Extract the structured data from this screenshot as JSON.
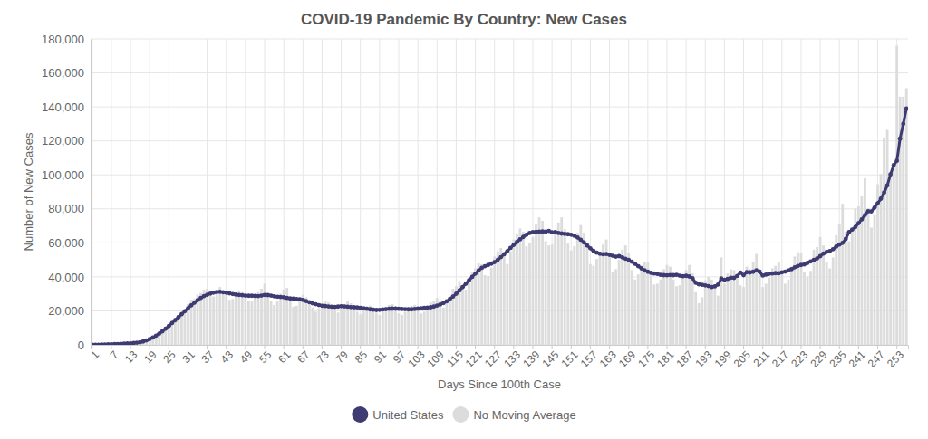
{
  "chart_data": {
    "type": "line",
    "title": "COVID-19 Pandemic By Country: New Cases",
    "x_label": "Days Since 100th Case",
    "y_label": "Number of New Cases",
    "categories": [
      "1",
      null,
      null,
      null,
      null,
      null,
      "7",
      null,
      null,
      null,
      null,
      null,
      "13",
      null,
      null,
      null,
      null,
      null,
      "19",
      null,
      null,
      null,
      null,
      null,
      "25",
      null,
      null,
      null,
      null,
      null,
      "31",
      null,
      null,
      null,
      null,
      null,
      "37",
      null,
      null,
      null,
      null,
      null,
      "43",
      null,
      null,
      null,
      null,
      null,
      "49",
      null,
      null,
      null,
      null,
      null,
      "55",
      null,
      null,
      null,
      null,
      null,
      "61",
      null,
      null,
      null,
      null,
      null,
      "67",
      null,
      null,
      null,
      null,
      null,
      "73",
      null,
      null,
      null,
      null,
      null,
      "79",
      null,
      null,
      null,
      null,
      null,
      "85",
      null,
      null,
      null,
      null,
      null,
      "91",
      null,
      null,
      null,
      null,
      null,
      "97",
      null,
      null,
      null,
      null,
      null,
      "103",
      null,
      null,
      null,
      null,
      null,
      "109",
      null,
      null,
      null,
      null,
      null,
      "115",
      null,
      null,
      null,
      null,
      null,
      "121",
      null,
      null,
      null,
      null,
      null,
      "127",
      null,
      null,
      null,
      null,
      null,
      "133",
      null,
      null,
      null,
      null,
      null,
      "139",
      null,
      null,
      null,
      null,
      null,
      "145",
      null,
      null,
      null,
      null,
      null,
      "151",
      null,
      null,
      null,
      null,
      null,
      "157",
      null,
      null,
      null,
      null,
      null,
      "163",
      null,
      null,
      null,
      null,
      null,
      "169",
      null,
      null,
      null,
      null,
      null,
      "175",
      null,
      null,
      null,
      null,
      null,
      "181",
      null,
      null,
      null,
      null,
      null,
      "187",
      null,
      null,
      null,
      null,
      null,
      "193",
      null,
      null,
      null,
      null,
      null,
      "199",
      null,
      null,
      null,
      null,
      null,
      "205",
      null,
      null,
      null,
      null,
      null,
      "211",
      null,
      null,
      null,
      null,
      null,
      "217",
      null,
      null,
      null,
      null,
      null,
      "223",
      null,
      null,
      null,
      null,
      null,
      "229",
      null,
      null,
      null,
      null,
      null,
      "235",
      null,
      null,
      null,
      null,
      null,
      "241",
      null,
      null,
      null,
      null,
      null,
      "247",
      null,
      null,
      null,
      null,
      null,
      "253",
      null,
      null,
      null
    ],
    "series": [
      {
        "name": "United States",
        "type": "line",
        "color": "#3d3b72",
        "marker": "circle",
        "line_style": "solid",
        "values": [
          0,
          100,
          100,
          200,
          200,
          300,
          300,
          400,
          500,
          600,
          700,
          800,
          900,
          1100,
          1300,
          1500,
          2000,
          2600,
          3400,
          4300,
          5400,
          6600,
          8000,
          9500,
          11100,
          12800,
          14500,
          16300,
          18000,
          19800,
          21500,
          23200,
          24800,
          26300,
          27600,
          28700,
          29500,
          30200,
          30700,
          31100,
          31200,
          31000,
          30700,
          30300,
          29900,
          29600,
          29400,
          29200,
          29000,
          28900,
          28900,
          28800,
          28700,
          29000,
          29400,
          29300,
          29000,
          28600,
          28300,
          28200,
          28000,
          27600,
          27300,
          27200,
          27000,
          26800,
          26400,
          25800,
          25100,
          24500,
          23900,
          23400,
          23000,
          22800,
          22600,
          22400,
          22300,
          22500,
          22700,
          22600,
          22400,
          22200,
          22100,
          22000,
          21800,
          21500,
          21200,
          20900,
          20700,
          20500,
          20600,
          20800,
          21000,
          21200,
          21300,
          21300,
          21200,
          21100,
          21000,
          20900,
          20900,
          21100,
          21300,
          21500,
          21800,
          21900,
          22100,
          22500,
          23100,
          23800,
          24600,
          25600,
          26900,
          28400,
          30100,
          32000,
          34000,
          36000,
          38000,
          40000,
          41900,
          43700,
          45300,
          46300,
          47000,
          47800,
          48700,
          50000,
          51600,
          53300,
          55100,
          57000,
          58800,
          60500,
          62100,
          63500,
          64800,
          65800,
          66300,
          66500,
          66600,
          66700,
          66600,
          67000,
          66200,
          66400,
          65800,
          65500,
          65300,
          65100,
          64800,
          64200,
          63200,
          61800,
          60200,
          58500,
          56800,
          55300,
          54200,
          53600,
          53300,
          53500,
          53000,
          52400,
          51900,
          52200,
          51500,
          50700,
          50000,
          48900,
          47700,
          46300,
          45000,
          43800,
          43000,
          42400,
          42000,
          41700,
          41200,
          41000,
          40900,
          41100,
          41000,
          41200,
          40700,
          40400,
          40600,
          40200,
          39200,
          36500,
          35600,
          35300,
          35000,
          34600,
          34000,
          34400,
          35500,
          39000,
          38300,
          38800,
          39500,
          39400,
          40500,
          42500,
          41000,
          42800,
          42600,
          43000,
          43800,
          43000,
          40800,
          41300,
          41800,
          42000,
          42200,
          42100,
          42700,
          43100,
          43900,
          44500,
          45600,
          46400,
          47000,
          47300,
          48200,
          49100,
          50000,
          50800,
          52200,
          53700,
          54700,
          55200,
          56300,
          57800,
          59000,
          60000,
          62300,
          66300,
          67800,
          69300,
          71600,
          73800,
          76400,
          78600,
          78500,
          80800,
          83300,
          86000,
          89600,
          93800,
          100300,
          105700,
          108300,
          121300,
          130000,
          139100
        ]
      },
      {
        "name": "No Moving Average",
        "type": "bar",
        "color": "#dcdcdc",
        "values": [
          100,
          120,
          130,
          210,
          230,
          330,
          280,
          420,
          540,
          650,
          700,
          850,
          1000,
          1150,
          1350,
          1600,
          2200,
          2800,
          3700,
          4700,
          6000,
          7300,
          9000,
          10500,
          12000,
          14200,
          16000,
          17500,
          19500,
          21000,
          24000,
          26500,
          27000,
          29500,
          30500,
          32500,
          33000,
          29000,
          28500,
          32000,
          34000,
          31500,
          30000,
          26500,
          27000,
          30500,
          32000,
          31000,
          29500,
          26000,
          25500,
          28500,
          31000,
          33000,
          36000,
          29500,
          26000,
          23500,
          25500,
          30000,
          32500,
          33500,
          27000,
          22500,
          23000,
          28000,
          29500,
          28000,
          26000,
          22000,
          19500,
          21500,
          24500,
          25500,
          25000,
          23500,
          20000,
          19000,
          21500,
          24000,
          25500,
          24500,
          23000,
          19500,
          18000,
          20500,
          22500,
          23000,
          22000,
          19000,
          17500,
          19500,
          22500,
          23500,
          24000,
          22500,
          18500,
          17500,
          19500,
          22000,
          23000,
          23500,
          22000,
          18500,
          19500,
          21500,
          25000,
          26000,
          27500,
          26000,
          22000,
          24500,
          28500,
          33000,
          34500,
          37500,
          35000,
          32500,
          36500,
          42500,
          45000,
          48000,
          47500,
          41000,
          40500,
          45500,
          52000,
          55000,
          57000,
          53000,
          47500,
          55000,
          62000,
          65500,
          68500,
          66500,
          58000,
          60000,
          63500,
          71000,
          75000,
          73000,
          61000,
          58500,
          59000,
          67500,
          72000,
          75000,
          68000,
          59500,
          55500,
          58000,
          66000,
          70500,
          66000,
          58000,
          47500,
          46500,
          50500,
          55000,
          59000,
          62000,
          54500,
          43000,
          44500,
          50000,
          56000,
          58500,
          54000,
          44000,
          38500,
          41500,
          46500,
          49000,
          48500,
          42500,
          35500,
          36000,
          38500,
          44500,
          47000,
          46000,
          38500,
          34500,
          35000,
          39500,
          44000,
          47000,
          42000,
          31000,
          24500,
          28000,
          38000,
          40000,
          38500,
          34500,
          29000,
          51500,
          36000,
          42000,
          44500,
          44000,
          39000,
          35000,
          34000,
          46000,
          44500,
          49000,
          53500,
          44500,
          34000,
          36000,
          39500,
          45000,
          46500,
          48500,
          42000,
          36000,
          38500,
          46000,
          52000,
          54500,
          54000,
          43000,
          40000,
          43500,
          56000,
          57500,
          63500,
          58500,
          48500,
          45000,
          51500,
          64500,
          71000,
          83000,
          66500,
          61000,
          68500,
          80000,
          81500,
          87500,
          98000,
          80500,
          69000,
          77000,
          94500,
          100500,
          121500,
          126500,
          99000,
          105000,
          176000,
          146000,
          146000,
          151000
        ]
      }
    ],
    "ylim": [
      0,
      180000
    ],
    "yticks": [
      0,
      {
        "value": 20000,
        "label": "20,000"
      },
      {
        "value": 40000,
        "label": "40,000"
      },
      {
        "value": 60000,
        "label": "60,000"
      },
      {
        "value": 80000,
        "label": "80,000"
      },
      {
        "value": 100000,
        "label": "100,000"
      },
      {
        "value": 120000,
        "label": "120,000"
      },
      {
        "value": 140000,
        "label": "140,000"
      },
      {
        "value": 160000,
        "label": "160,000"
      },
      {
        "value": 180000,
        "label": "180,000"
      }
    ],
    "grid": true,
    "legend": "bottom"
  }
}
